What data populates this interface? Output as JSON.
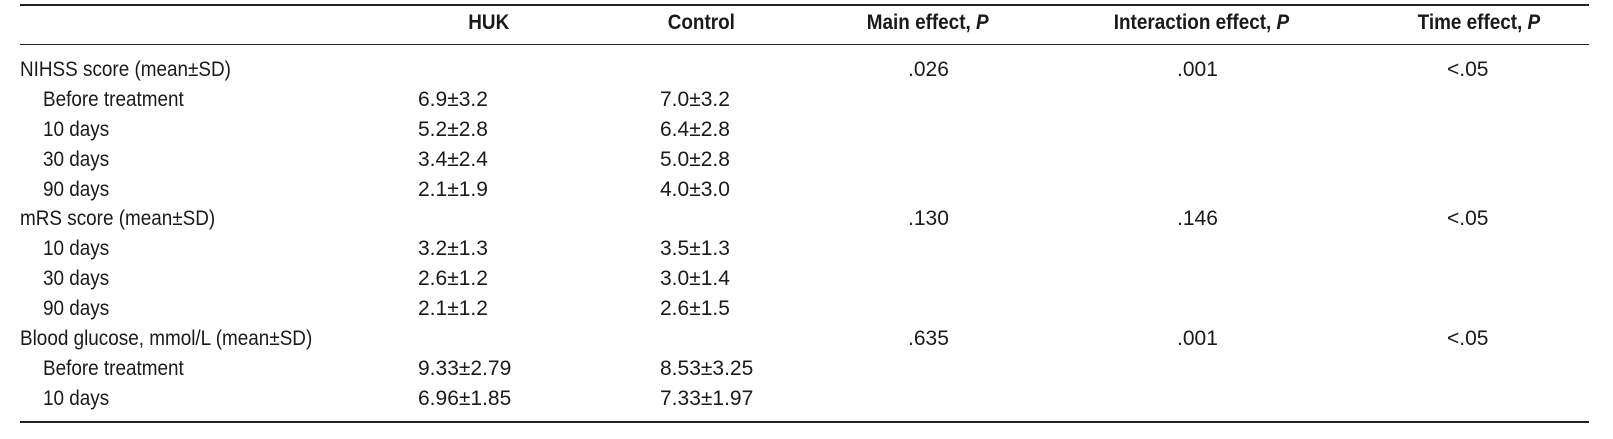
{
  "table": {
    "headers": {
      "huk": "HUK",
      "control": "Control",
      "main_effect": "Main effect, ",
      "interaction_effect": "Interaction effect, ",
      "time_effect": "Time effect, ",
      "p_symbol": "P"
    },
    "rows": [
      {
        "label": "NIHSS score (mean±SD)",
        "huk": "",
        "control": "",
        "main": ".026",
        "interaction": ".001",
        "time": "<.05"
      },
      {
        "label": "Before treatment",
        "huk": "6.9±3.2",
        "control": "7.0±3.2",
        "main": "",
        "interaction": "",
        "time": ""
      },
      {
        "label": "10 days",
        "huk": "5.2±2.8",
        "control": "6.4±2.8",
        "main": "",
        "interaction": "",
        "time": ""
      },
      {
        "label": "30 days",
        "huk": "3.4±2.4",
        "control": "5.0±2.8",
        "main": "",
        "interaction": "",
        "time": ""
      },
      {
        "label": "90 days",
        "huk": "2.1±1.9",
        "control": "4.0±3.0",
        "main": "",
        "interaction": "",
        "time": ""
      },
      {
        "label": "mRS score (mean±SD)",
        "huk": "",
        "control": "",
        "main": ".130",
        "interaction": ".146",
        "time": "<.05"
      },
      {
        "label": "10 days",
        "huk": "3.2±1.3",
        "control": "3.5±1.3",
        "main": "",
        "interaction": "",
        "time": ""
      },
      {
        "label": "30 days",
        "huk": "2.6±1.2",
        "control": "3.0±1.4",
        "main": "",
        "interaction": "",
        "time": ""
      },
      {
        "label": "90 days",
        "huk": "2.1±1.2",
        "control": "2.6±1.5",
        "main": "",
        "interaction": "",
        "time": ""
      },
      {
        "label": "Blood glucose, mmol/L (mean±SD)",
        "huk": "",
        "control": "",
        "main": ".635",
        "interaction": ".001",
        "time": "<.05"
      },
      {
        "label": "Before treatment",
        "huk": "9.33±2.79",
        "control": "8.53±3.25",
        "main": "",
        "interaction": "",
        "time": ""
      },
      {
        "label": "10 days",
        "huk": "6.96±1.85",
        "control": "7.33±1.97",
        "main": "",
        "interaction": "",
        "time": ""
      }
    ]
  }
}
